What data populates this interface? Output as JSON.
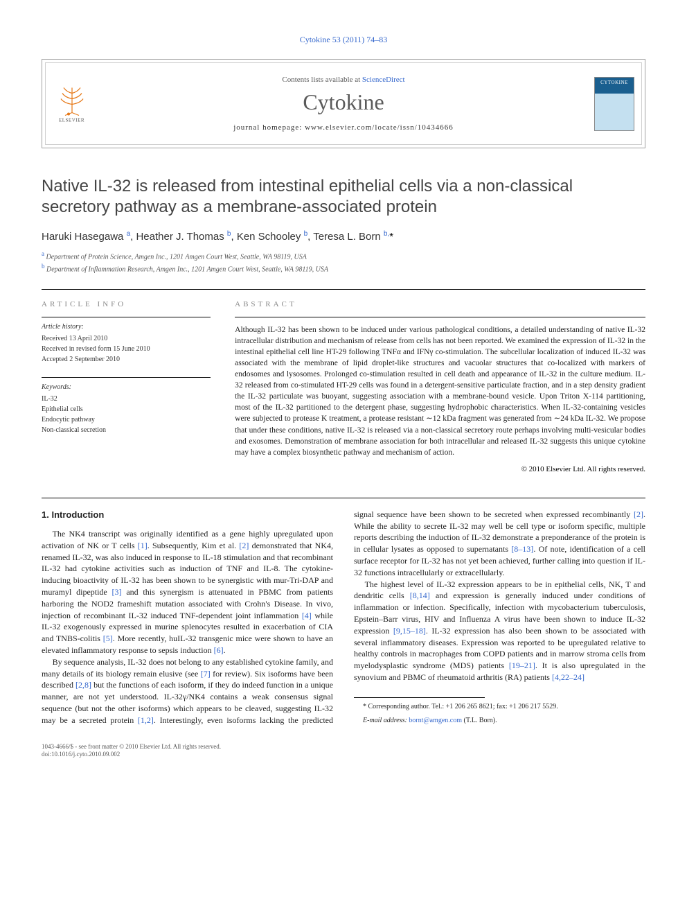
{
  "citation": "Cytokine 53 (2011) 74–83",
  "header": {
    "contents_prefix": "Contents lists available at ",
    "contents_link": "ScienceDirect",
    "journal": "Cytokine",
    "homepage_prefix": "journal homepage: ",
    "homepage_url": "www.elsevier.com/locate/issn/10434666",
    "publisher": "ELSEVIER",
    "cover_label": "CYTOKINE"
  },
  "title": "Native IL-32 is released from intestinal epithelial cells via a non-classical secretory pathway as a membrane-associated protein",
  "authors_html": "Haruki Hasegawa <sup>a</sup>, Heather J. Thomas <sup>b</sup>, Ken Schooley <sup>b</sup>, Teresa L. Born <sup>b,</sup><span class='corr'>*</span>",
  "affiliations": [
    {
      "sup": "a",
      "text": "Department of Protein Science, Amgen Inc., 1201 Amgen Court West, Seattle, WA 98119, USA"
    },
    {
      "sup": "b",
      "text": "Department of Inflammation Research, Amgen Inc., 1201 Amgen Court West, Seattle, WA 98119, USA"
    }
  ],
  "info": {
    "heading": "article info",
    "history_label": "Article history:",
    "history": [
      "Received 13 April 2010",
      "Received in revised form 15 June 2010",
      "Accepted 2 September 2010"
    ],
    "keywords_label": "Keywords:",
    "keywords": [
      "IL-32",
      "Epithelial cells",
      "Endocytic pathway",
      "Non-classical secretion"
    ]
  },
  "abstract": {
    "heading": "abstract",
    "text": "Although IL-32 has been shown to be induced under various pathological conditions, a detailed understanding of native IL-32 intracellular distribution and mechanism of release from cells has not been reported. We examined the expression of IL-32 in the intestinal epithelial cell line HT-29 following TNFα and IFNγ co-stimulation. The subcellular localization of induced IL-32 was associated with the membrane of lipid droplet-like structures and vacuolar structures that co-localized with markers of endosomes and lysosomes. Prolonged co-stimulation resulted in cell death and appearance of IL-32 in the culture medium. IL-32 released from co-stimulated HT-29 cells was found in a detergent-sensitive particulate fraction, and in a step density gradient the IL-32 particulate was buoyant, suggesting association with a membrane-bound vesicle. Upon Triton X-114 partitioning, most of the IL-32 partitioned to the detergent phase, suggesting hydrophobic characteristics. When IL-32-containing vesicles were subjected to protease K treatment, a protease resistant ∼12 kDa fragment was generated from ∼24 kDa IL-32. We propose that under these conditions, native IL-32 is released via a non-classical secretory route perhaps involving multi-vesicular bodies and exosomes. Demonstration of membrane association for both intracellular and released IL-32 suggests this unique cytokine may have a complex biosynthetic pathway and mechanism of action.",
    "copyright": "© 2010 Elsevier Ltd. All rights reserved."
  },
  "intro": {
    "heading": "1. Introduction",
    "p1": "The NK4 transcript was originally identified as a gene highly upregulated upon activation of NK or T cells <span class='ref'>[1]</span>. Subsequently, Kim et al. <span class='ref'>[2]</span> demonstrated that NK4, renamed IL-32, was also induced in response to IL-18 stimulation and that recombinant IL-32 had cytokine activities such as induction of TNF and IL-8. The cytokine-inducing bioactivity of IL-32 has been shown to be synergistic with mur-Tri-DAP and muramyl dipeptide <span class='ref'>[3]</span> and this synergism is attenuated in PBMC from patients harboring the NOD2 frameshift mutation associated with Crohn's Disease. In vivo, injection of recombinant IL-32 induced TNF-dependent joint inflammation <span class='ref'>[4]</span> while IL-32 exogenously expressed in murine splenocytes resulted in exacerbation of CIA and TNBS-colitis <span class='ref'>[5]</span>. More recently, huIL-32 transgenic mice were shown to have an elevated inflammatory response to sepsis induction <span class='ref'>[6]</span>.",
    "p2": "By sequence analysis, IL-32 does not belong to any established cytokine family, and many details of its biology remain elusive (see <span class='ref'>[7]</span> for review). Six isoforms have been described <span class='ref'>[2,8]</span> but the functions of each isoform, if they do indeed function in a unique manner, are not yet understood. IL-32γ/NK4 contains a weak consensus signal sequence (but not the other isoforms) which appears to be cleaved, suggesting IL-32 may be a secreted protein <span class='ref'>[1,2]</span>. Interestingly, even isoforms lacking the predicted signal sequence have been shown to be secreted when expressed recombinantly <span class='ref'>[2]</span>. While the ability to secrete IL-32 may well be cell type or isoform specific, multiple reports describing the induction of IL-32 demonstrate a preponderance of the protein is in cellular lysates as opposed to supernatants <span class='ref'>[8–13]</span>. Of note, identification of a cell surface receptor for IL-32 has not yet been achieved, further calling into question if IL-32 functions intracellularly or extracellularly.",
    "p3": "The highest level of IL-32 expression appears to be in epithelial cells, NK, T and dendritic cells <span class='ref'>[8,14]</span> and expression is generally induced under conditions of inflammation or infection. Specifically, infection with mycobacterium tuberculosis, Epstein–Barr virus, HIV and Influenza A virus have been shown to induce IL-32 expression <span class='ref'>[9,15–18]</span>. IL-32 expression has also been shown to be associated with several inflammatory diseases. Expression was reported to be upregulated relative to healthy controls in macrophages from COPD patients and in marrow stroma cells from myelodysplastic syndrome (MDS) patients <span class='ref'>[19–21]</span>. It is also upregulated in the synovium and PBMC of rheumatoid arthritis (RA) patients <span class='ref'>[4,22–24]</span>"
  },
  "footnote": {
    "corr": "* Corresponding author. Tel.: +1 206 265 8621; fax: +1 206 217 5529.",
    "email_label": "E-mail address:",
    "email": "bornt@amgen.com",
    "email_person": "(T.L. Born)."
  },
  "bottom": {
    "line1": "1043-4666/$ - see front matter © 2010 Elsevier Ltd. All rights reserved.",
    "line2": "doi:10.1016/j.cyto.2010.09.002"
  },
  "colors": {
    "link": "#3366cc",
    "text": "#222222",
    "heading_grey": "#888888",
    "rule": "#000000"
  }
}
